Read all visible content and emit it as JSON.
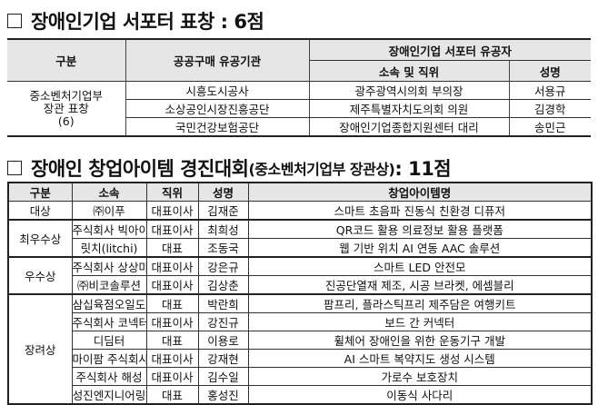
{
  "section1": {
    "title": "장애인기업 서포터 표창 : 6점",
    "headers": {
      "category": "구분",
      "agency": "공공구매 유공기관",
      "supporter": "장애인기업 서포터 유공자",
      "affiliation": "소속 및 직위",
      "name": "성명"
    },
    "category_lines": [
      "중소벤처기업부",
      "장관 표창",
      "(6)"
    ],
    "rows": [
      {
        "agency": "시흥도시공사",
        "affiliation": "광주광역시의회 부의장",
        "name": "서용규"
      },
      {
        "agency": "소상공인시장진흥공단",
        "affiliation": "제주특별자치도의회 의원",
        "name": "김경학"
      },
      {
        "agency": "국민건강보험공단",
        "affiliation": "장애인기업종합지원센터 대리",
        "name": "송민근"
      }
    ]
  },
  "section2": {
    "title": "장애인 창업아이템 경진대회",
    "title_sub": "(중소벤처기업부 장관상)",
    "title_count": " : 11점",
    "headers": [
      "구분",
      "소속",
      "직위",
      "성명",
      "창업아이템명"
    ],
    "groups": [
      {
        "label": "대상",
        "rows": [
          [
            "㈜이푸",
            "대표이사",
            "김재준",
            "스마트 초음파 진동식 친환경 디퓨저"
          ]
        ]
      },
      {
        "label": "최우수상",
        "rows": [
          [
            "주식회사 빅아이디어",
            "대표이사",
            "최희성",
            "QR코드 활용 의료정보 활용 플랫폼"
          ],
          [
            "릿치(litchi)",
            "대표",
            "조동국",
            "웹 기반 위치 AI 연동 AAC 솔루션"
          ]
        ]
      },
      {
        "label": "우수상",
        "rows": [
          [
            "주식회사 상상마루",
            "대표이사",
            "강은규",
            "스마트 LED 안전모"
          ],
          [
            "㈜비코솔루션",
            "대표이사",
            "김상춘",
            "진공단열재 제조, 시공 브라켓, 에셈블리"
          ]
        ]
      },
      {
        "label": "장려상",
        "rows": [
          [
            "삼십육점오일도",
            "대표",
            "박란희",
            "팜프리, 플라스틱프리 제주담은 여행키트"
          ],
          [
            "주식회사 코넥터",
            "대표이사",
            "강진규",
            "보드 간 커넥터"
          ],
          [
            "디딤터",
            "대표",
            "이용로",
            "휠체어 장애인을 위한 운동기구 개발"
          ],
          [
            "마이팜 주식회사",
            "대표이사",
            "강재현",
            "AI 스마트 복약지도 생성 시스템"
          ],
          [
            "주식회사 해성",
            "대표이사",
            "김수일",
            "가로수 보호장치"
          ],
          [
            "성진엔지니어링",
            "대표",
            "홍성진",
            "이동식 사다리"
          ]
        ]
      }
    ]
  }
}
